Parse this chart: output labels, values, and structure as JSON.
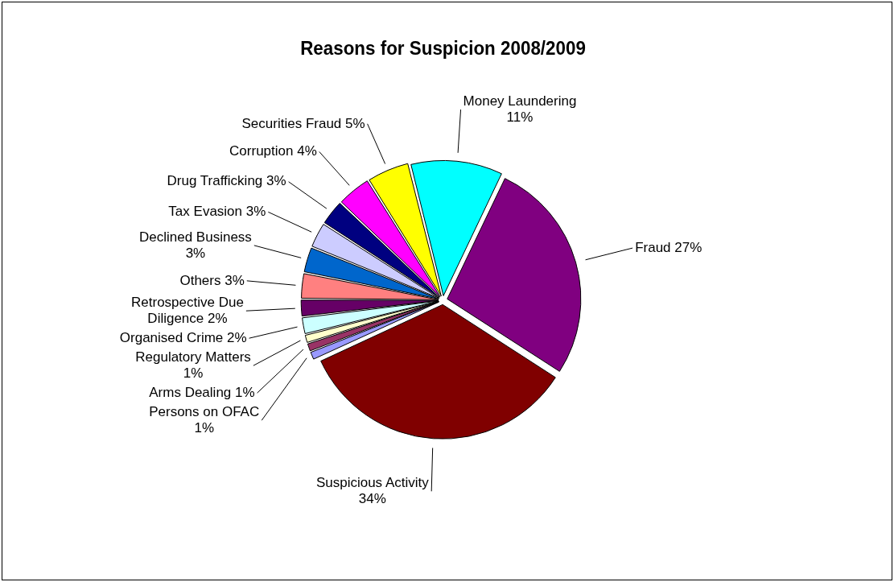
{
  "chart_data": {
    "type": "pie",
    "title": "Reasons for Suspicion 2008/2009",
    "categories": [
      "Money Laundering",
      "Fraud",
      "Suspicious Activity",
      "Persons on OFAC",
      "Arms Dealing",
      "Regulatory Matters",
      "Organised Crime",
      "Retrospective Due Diligence",
      "Others",
      "Declined Business",
      "Tax Evasion",
      "Drug Trafficking",
      "Corruption",
      "Securities Fraud"
    ],
    "values": [
      11,
      27,
      34,
      1,
      1,
      1,
      2,
      2,
      3,
      3,
      3,
      3,
      4,
      5
    ],
    "value_labels": [
      "11%",
      "27%",
      "34%",
      "1%",
      "1%",
      "1%",
      "2%",
      "2%",
      "3%",
      "3%",
      "3%",
      "3%",
      "4%",
      "5%"
    ],
    "colors": [
      "#00ffff",
      "#800080",
      "#800000",
      "#9999ff",
      "#993366",
      "#ffffcc",
      "#ccffff",
      "#660066",
      "#ff8080",
      "#0066cc",
      "#ccccff",
      "#000080",
      "#ff00ff",
      "#ffff00"
    ]
  }
}
